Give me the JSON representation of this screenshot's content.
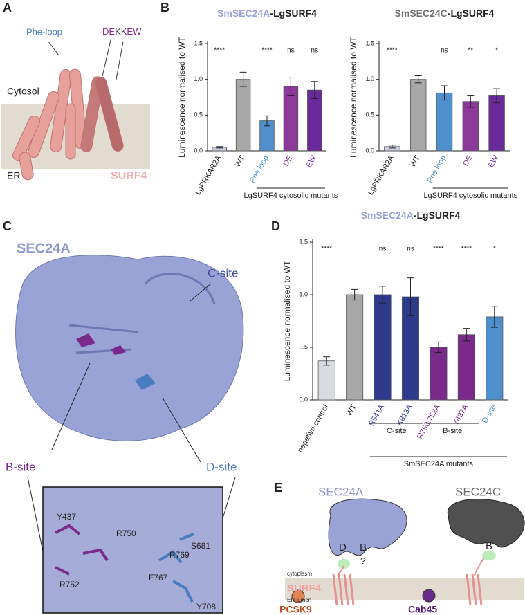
{
  "panel_labels": [
    "A",
    "B",
    "C",
    "D",
    "E"
  ],
  "panel_a": {
    "phe_loop": "Phe-loop",
    "motif": [
      "DE",
      "KK",
      "EW"
    ],
    "cytosol": "Cytosol",
    "er": "ER",
    "surf4": "SURF4"
  },
  "panel_c": {
    "protein": "SEC24A",
    "c_site": "C-site",
    "b_site": "B-site",
    "d_site": "D-site",
    "residues": [
      "Y437",
      "R750",
      "S681",
      "R769",
      "F767",
      "R752",
      "Y708"
    ]
  },
  "panel_e": {
    "sec24a": "SEC24A",
    "sec24c": "SEC24C",
    "site_d": "D",
    "site_b_a": "B",
    "unknown": "?",
    "site_b_c": "B",
    "cytoplasm": "cytoplasm",
    "surf4": "SURF4",
    "er_lumen": "ER lumen",
    "pcsk9": "PCSK9",
    "cab45": "Cab45"
  },
  "chart_data": [
    {
      "type": "bar",
      "title": [
        "SmSEC24A",
        "-LgSURF4"
      ],
      "title_colors": [
        "#9aa3d6",
        "#222222"
      ],
      "ylabel": "Luminescence normalised to WT",
      "categories": [
        "LgPRKAR2A",
        "WT",
        "Phe loop",
        "DE",
        "EW"
      ],
      "values": [
        0.05,
        1.0,
        0.42,
        0.9,
        0.85
      ],
      "errors": [
        0.01,
        0.1,
        0.07,
        0.13,
        0.12
      ],
      "significance": [
        "****",
        null,
        "****",
        "ns",
        "ns"
      ],
      "colors": [
        "#c9cde0",
        "#a8a8a8",
        "#4f8fcc",
        "#8b3a99",
        "#6a2a9a"
      ],
      "label_colors": [
        "#222222",
        "#222222",
        "#4f8fcc",
        "#8b3a99",
        "#6a2a9a"
      ],
      "ylim": [
        0,
        1.5
      ],
      "yticks": [
        {
          "value": 0,
          "label": "0.0"
        },
        {
          "value": 0.5,
          "label": "0.5"
        },
        {
          "value": 1,
          "label": "1.0"
        },
        {
          "value": 1.5,
          "label": "1.5"
        }
      ],
      "groups": [
        {
          "label": "LgSURF4 cytosolic mutants",
          "span": [
            2,
            4
          ]
        }
      ]
    },
    {
      "type": "bar",
      "title": [
        "SmSEC24C",
        "-LgSURF4"
      ],
      "title_colors": [
        "#707070",
        "#222222"
      ],
      "ylabel": "Luminescence normalised to WT",
      "categories": [
        "LgPRKAR2A",
        "WT",
        "Phe loop",
        "DE",
        "EW"
      ],
      "values": [
        0.06,
        1.0,
        0.81,
        0.69,
        0.77
      ],
      "errors": [
        0.02,
        0.05,
        0.1,
        0.08,
        0.1
      ],
      "significance": [
        "****",
        null,
        "ns",
        "**",
        "*"
      ],
      "colors": [
        "#c9cde0",
        "#a8a8a8",
        "#4f8fcc",
        "#8b3a99",
        "#6a2a9a"
      ],
      "label_colors": [
        "#222222",
        "#222222",
        "#4f8fcc",
        "#8b3a99",
        "#6a2a9a"
      ],
      "ylim": [
        0,
        1.5
      ],
      "yticks": [
        {
          "value": 0,
          "label": "0.0"
        },
        {
          "value": 0.5,
          "label": "0.5"
        },
        {
          "value": 1,
          "label": "1.0"
        },
        {
          "value": 1.5,
          "label": "1.5"
        }
      ],
      "groups": [
        {
          "label": "LgSURF4 cytosolic mutants",
          "span": [
            2,
            4
          ]
        }
      ]
    },
    {
      "type": "bar",
      "title": [
        "SmSEC24A",
        "-LgSURF4"
      ],
      "title_colors": [
        "#9aa3d6",
        "#222222"
      ],
      "ylabel": "Luminescence normalised to WT",
      "categories": [
        "negative control",
        "WT",
        "R541A",
        "K813A",
        "R750,752A",
        "Y437A",
        "D-site"
      ],
      "values": [
        0.37,
        1.0,
        1.0,
        0.98,
        0.5,
        0.62,
        0.79
      ],
      "errors": [
        0.04,
        0.05,
        0.08,
        0.18,
        0.05,
        0.06,
        0.1
      ],
      "significance": [
        "****",
        null,
        "ns",
        "ns",
        "****",
        "****",
        "*"
      ],
      "colors": [
        "#d8dbe0",
        "#a8a8a8",
        "#2e3a8c",
        "#2e3a8c",
        "#7a2a8a",
        "#7a2a8a",
        "#4f8fcc"
      ],
      "label_colors": [
        "#222222",
        "#222222",
        "#2e3a8c",
        "#2e3a8c",
        "#7a2a8a",
        "#7a2a8a",
        "#4f8fcc"
      ],
      "ylim": [
        0,
        1.5
      ],
      "yticks": [
        {
          "value": 0,
          "label": "0.0"
        },
        {
          "value": 0.5,
          "label": "0.5"
        },
        {
          "value": 1,
          "label": "1.0"
        },
        {
          "value": 1.5,
          "label": "1.5"
        }
      ],
      "groups": [
        {
          "label": "C-site",
          "span": [
            2,
            3
          ]
        },
        {
          "label": "B-site",
          "span": [
            4,
            5
          ]
        },
        {
          "label": "SmSEC24A mutants",
          "span": [
            2,
            6
          ]
        }
      ]
    }
  ]
}
